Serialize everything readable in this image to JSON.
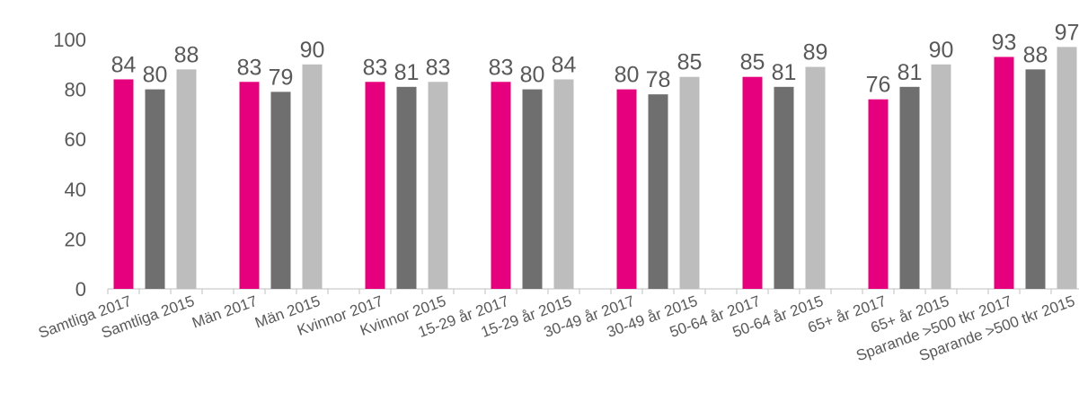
{
  "chart_data": {
    "type": "bar",
    "categories": [
      "Samtliga 2017",
      null,
      "Samtliga 2015",
      null,
      "Män 2017",
      null,
      "Män 2015",
      null,
      "Kvinnor 2017",
      null,
      "Kvinnor 2015",
      null,
      "15-29 år 2017",
      null,
      "15-29 år 2015",
      null,
      "30-49 år 2017",
      null,
      "30-49 år 2015",
      null,
      "50-64 år 2017",
      null,
      "50-64 år 2015",
      null,
      "65+ år 2017",
      null,
      "65+ år 2015",
      null,
      "Sparande >500 tkr 2017",
      null,
      "Sparande >500 tkr 2015",
      null
    ],
    "series": [
      {
        "color": "#e6007e",
        "values": [
          84,
          null,
          null,
          null,
          83,
          null,
          null,
          null,
          83,
          null,
          null,
          null,
          83,
          null,
          null,
          null,
          80,
          null,
          null,
          null,
          85,
          null,
          null,
          null,
          76,
          null,
          null,
          null,
          93,
          null,
          null,
          null
        ]
      },
      {
        "color": "#6f6f6f",
        "values": [
          null,
          80,
          null,
          null,
          null,
          79,
          null,
          null,
          null,
          81,
          null,
          null,
          null,
          80,
          null,
          null,
          null,
          78,
          null,
          null,
          null,
          81,
          null,
          null,
          null,
          81,
          null,
          null,
          null,
          88,
          null,
          null
        ]
      },
      {
        "color": "#bdbdbd",
        "values": [
          null,
          null,
          88,
          null,
          null,
          null,
          90,
          null,
          null,
          null,
          83,
          null,
          null,
          null,
          84,
          null,
          null,
          null,
          85,
          null,
          null,
          null,
          89,
          null,
          null,
          null,
          90,
          null,
          null,
          null,
          97,
          null
        ]
      }
    ],
    "ylim": [
      0,
      100
    ],
    "yticks": [
      0,
      20,
      40,
      60,
      80,
      100
    ],
    "grid": false
  }
}
